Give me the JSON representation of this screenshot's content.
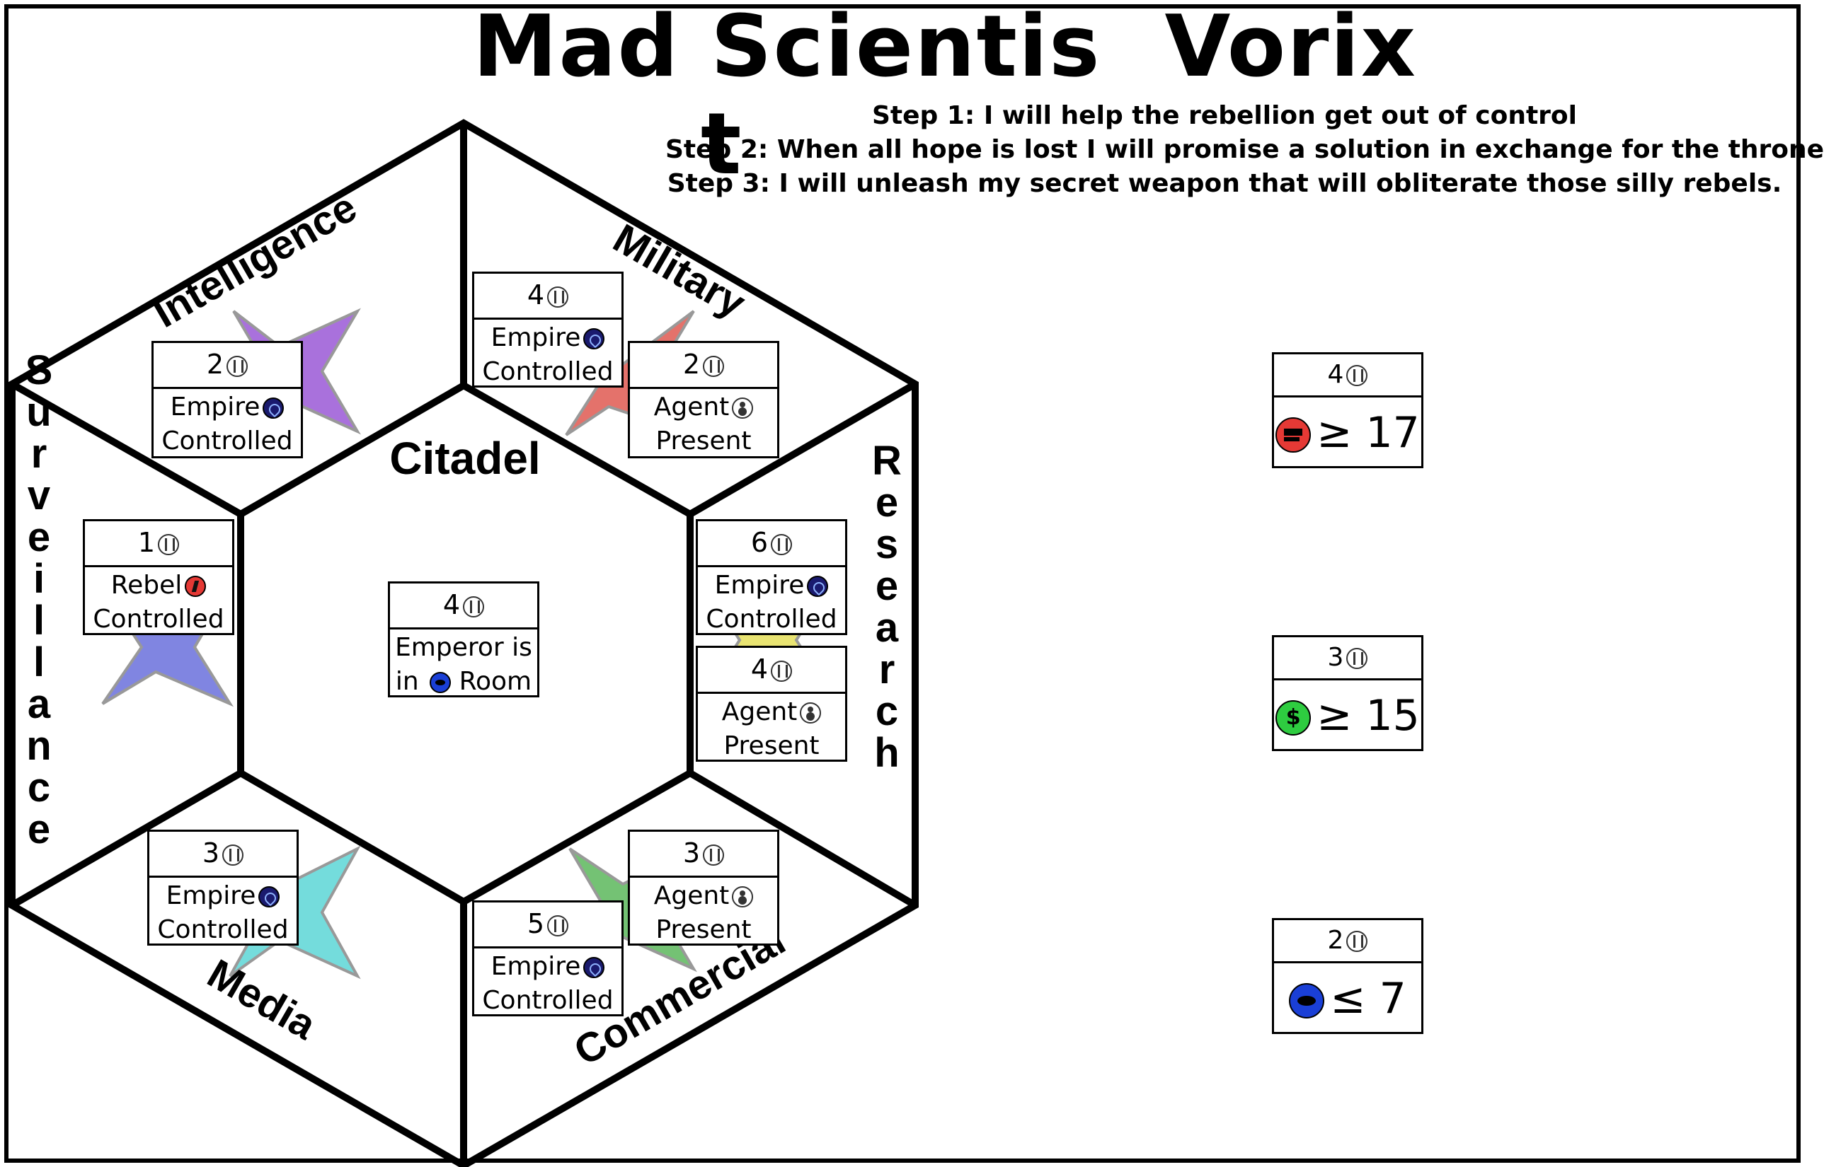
{
  "title": "Mad Scientis",
  "title_suffix": "Vorix",
  "title_wrap": "t",
  "steps": [
    "Step 1: I will help the rebellion get out of control",
    "Step 2: When all hope is lost I will promise a solution in exchange for the throne",
    "Step 3: I will unleash my secret weapon that will obliterate those silly rebels."
  ],
  "regions": {
    "citadel": "Citadel",
    "intelligence": "Intelligence",
    "military": "Military",
    "surveillance": "Surveillance",
    "research": "Research",
    "media": "Media",
    "commercial": "Commercial"
  },
  "region_colors": {
    "intelligence": "#9b59d6",
    "military": "#e05a52",
    "surveillance": "#6a70dc",
    "research": "#e6e05a",
    "media": "#5cd6d6",
    "commercial": "#5cb85c"
  },
  "tiles": {
    "intelligence": {
      "points": "2",
      "line1": "Empire",
      "line2": "Controlled",
      "icon": "empire-icon"
    },
    "military_a": {
      "points": "4",
      "line1": "Empire",
      "line2": "Controlled",
      "icon": "empire-icon"
    },
    "military_b": {
      "points": "2",
      "line1": "Agent",
      "line2": "Present",
      "icon": "agent-icon"
    },
    "surveillance": {
      "points": "1",
      "line1": "Rebel",
      "line2": "Controlled",
      "icon": "rebel-icon"
    },
    "citadel": {
      "points": "4",
      "line1": "Emperor is",
      "line2a": "in",
      "line2b": "Room",
      "icon": "eye-icon"
    },
    "research_a": {
      "points": "6",
      "line1": "Empire",
      "line2": "Controlled",
      "icon": "empire-icon"
    },
    "research_b": {
      "points": "4",
      "line1": "Agent",
      "line2": "Present",
      "icon": "agent-icon"
    },
    "media": {
      "points": "3",
      "line1": "Empire",
      "line2": "Controlled",
      "icon": "empire-icon"
    },
    "commercial_a": {
      "points": "3",
      "line1": "Agent",
      "line2": "Present",
      "icon": "agent-icon"
    },
    "commercial_b": {
      "points": "5",
      "line1": "Empire",
      "line2": "Controlled",
      "icon": "empire-icon"
    }
  },
  "objectives": [
    {
      "points": "4",
      "resource_icon": "gun-icon",
      "comparator": "≥",
      "value": "17",
      "color": "#e53935"
    },
    {
      "points": "3",
      "resource_icon": "money-icon",
      "comparator": "≥",
      "value": "15",
      "color": "#2ecc40"
    },
    {
      "points": "2",
      "resource_icon": "eye-icon",
      "comparator": "≤",
      "value": "7",
      "color": "#1a3fd6"
    }
  ]
}
